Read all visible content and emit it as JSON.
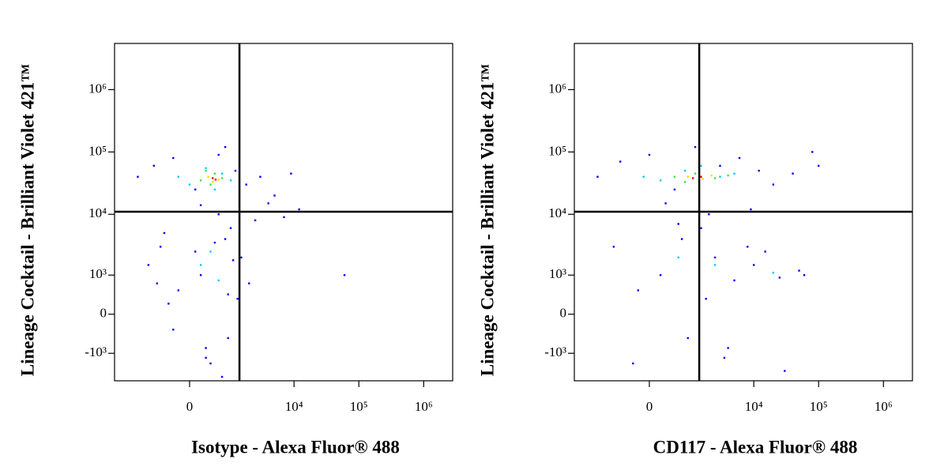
{
  "chart_data": [
    {
      "type": "scatter",
      "xlabel": "Isotype - Alexa Fluor® 488",
      "ylabel": "Lineage Cocktail - Brilliant Violet 421™",
      "xscale": "biexponential",
      "yscale": "biexponential",
      "xlim": [
        -3500,
        2800000
      ],
      "ylim": [
        -2900,
        5500000
      ],
      "xticks": [
        0,
        {
          "value": 10000,
          "label": "10⁴"
        },
        {
          "value": 100000,
          "label": "10⁵"
        },
        {
          "value": 1000000,
          "label": "10⁶"
        }
      ],
      "yticks": [
        {
          "value": -1000,
          "label": "-10³"
        },
        0,
        {
          "value": 1000,
          "label": "10³"
        },
        {
          "value": 10000,
          "label": "10⁴"
        },
        {
          "value": 100000,
          "label": "10⁵"
        },
        {
          "value": 1000000,
          "label": "10⁶"
        }
      ],
      "gates": {
        "x": 1400,
        "y": 11000
      },
      "series": [
        {
          "color": "#0000ff",
          "x": [
            -1500,
            -800,
            -300,
            100,
            600,
            1200,
            1800,
            3000,
            5000,
            9000,
            -600,
            200,
            900,
            1500,
            -200,
            400,
            800,
            -1000,
            2500,
            12000,
            -400,
            300,
            1000,
            700,
            100,
            -700,
            500,
            1300,
            60000,
            4000,
            -300,
            600,
            800,
            200,
            1100,
            -500,
            2000,
            7000,
            300,
            900
          ],
          "y": [
            40000,
            60000,
            80000,
            25000,
            90000,
            50000,
            30000,
            40000,
            20000,
            45000,
            3000,
            1000,
            -500,
            2000,
            500,
            -1500,
            4000,
            1500,
            8000,
            12000,
            200,
            -800,
            6000,
            -2500,
            2500,
            700,
            3500,
            300,
            1000,
            15000,
            -300,
            10000,
            120000,
            14000,
            1800,
            5000,
            700,
            9000,
            -1200,
            400
          ]
        },
        {
          "color": "#00c8ff",
          "x": [
            0,
            300,
            700,
            1000,
            -200,
            500,
            200,
            600,
            400
          ],
          "y": [
            30000,
            55000,
            45000,
            35000,
            40000,
            25000,
            1500,
            800,
            2500
          ]
        },
        {
          "color": "#40e040",
          "x": [
            200,
            500,
            700,
            400,
            300
          ],
          "y": [
            35000,
            45000,
            38000,
            30000,
            50000
          ]
        },
        {
          "color": "#ffd700",
          "x": [
            350,
            600,
            450
          ],
          "y": [
            40000,
            36000,
            33000
          ]
        },
        {
          "color": "#ff0000",
          "x": [
            450,
            520
          ],
          "y": [
            38000,
            36000
          ]
        }
      ]
    },
    {
      "type": "scatter",
      "xlabel": "CD117 - Alexa Fluor® 488",
      "ylabel": "Lineage Cocktail - Brilliant Violet 421™",
      "xscale": "biexponential",
      "yscale": "biexponential",
      "xlim": [
        -3500,
        2800000
      ],
      "ylim": [
        -2900,
        5500000
      ],
      "xticks": [
        0,
        {
          "value": 10000,
          "label": "10⁴"
        },
        {
          "value": 100000,
          "label": "10⁵"
        },
        {
          "value": 1000000,
          "label": "10⁶"
        }
      ],
      "yticks": [
        {
          "value": -1000,
          "label": "-10³"
        },
        0,
        {
          "value": 1000,
          "label": "10³"
        },
        {
          "value": 10000,
          "label": "10⁴"
        },
        {
          "value": 100000,
          "label": "10⁵"
        },
        {
          "value": 1000000,
          "label": "10⁶"
        }
      ],
      "gates": {
        "x": 1400,
        "y": 11000
      },
      "series": [
        {
          "color": "#0000ff",
          "x": [
            -1500,
            -600,
            0,
            500,
            1200,
            3000,
            6000,
            12000,
            20000,
            40000,
            -800,
            200,
            900,
            2500,
            5000,
            10000,
            25000,
            50000,
            -300,
            700,
            1500,
            4000,
            8000,
            15000,
            30000,
            60000,
            100000,
            -200,
            600,
            2000,
            9000,
            3500,
            80000,
            1800,
            300
          ],
          "y": [
            40000,
            70000,
            90000,
            25000,
            120000,
            60000,
            80000,
            50000,
            30000,
            45000,
            3000,
            1000,
            -500,
            2000,
            800,
            1500,
            900,
            1200,
            -1500,
            4000,
            6000,
            -800,
            3000,
            2500,
            -2000,
            1000,
            60000,
            500,
            7000,
            10000,
            12000,
            -1200,
            100000,
            300,
            15000
          ]
        },
        {
          "color": "#00c8ff",
          "x": [
            200,
            800,
            1500,
            3000,
            5000,
            -100,
            600,
            2500,
            20000
          ],
          "y": [
            35000,
            50000,
            60000,
            40000,
            45000,
            40000,
            2000,
            1500,
            1100
          ]
        },
        {
          "color": "#40e040",
          "x": [
            500,
            1200,
            2500,
            4000,
            800
          ],
          "y": [
            40000,
            45000,
            38000,
            42000,
            33000
          ]
        },
        {
          "color": "#ffd700",
          "x": [
            900,
            1600,
            2200
          ],
          "y": [
            40000,
            37000,
            42000
          ]
        },
        {
          "color": "#ff0000",
          "x": [
            1100,
            1500
          ],
          "y": [
            38000,
            40000
          ]
        }
      ]
    }
  ]
}
